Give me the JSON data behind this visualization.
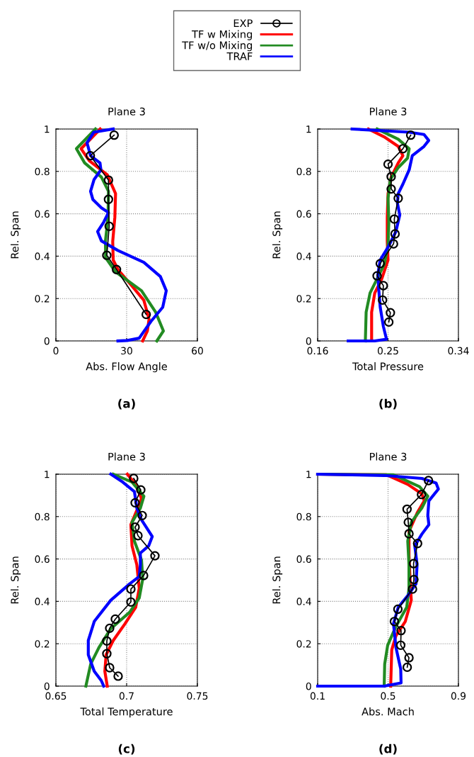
{
  "chart_data": [
    {
      "type": "line",
      "title": "Plane 3",
      "xlabel": "Abs. Flow Angle",
      "ylabel": "Rel. Span",
      "annotations": [
        "(a)"
      ],
      "xlim": [
        0,
        60
      ],
      "xticks": [
        0,
        30,
        60
      ],
      "ylim": [
        0,
        1
      ],
      "yticks": [
        0,
        0.2,
        0.4,
        0.6,
        0.8,
        1
      ],
      "grid": true,
      "legend": "top",
      "series": [
        {
          "name": "EXP",
          "color": "#000000",
          "marker": "circle",
          "x": [
            24.7,
            14.6,
            22.3,
            22.3,
            22.6,
            21.6,
            25.7,
            38.3
          ],
          "values": [
            0.971,
            0.874,
            0.759,
            0.668,
            0.541,
            0.404,
            0.337,
            0.125
          ]
        },
        {
          "name": "TF w Mixing",
          "color": "#ff0000",
          "x": [
            18.8,
            10.7,
            14.2,
            21.8,
            25.3,
            25.0,
            24.1,
            24.3,
            26.3,
            32.3,
            37.3,
            39.5,
            38.8,
            36.8
          ],
          "values": [
            1.0,
            0.907,
            0.85,
            0.784,
            0.695,
            0.583,
            0.47,
            0.382,
            0.337,
            0.259,
            0.192,
            0.103,
            0.047,
            0
          ]
        },
        {
          "name": "TF w/o Mixing",
          "color": "#228b22",
          "x": [
            16.8,
            8.7,
            12.2,
            19.3,
            22.3,
            22.1,
            21.0,
            21.1,
            25.3,
            36.3,
            42.3,
            45.6,
            42.8
          ],
          "values": [
            1.0,
            0.907,
            0.84,
            0.773,
            0.706,
            0.583,
            0.47,
            0.393,
            0.326,
            0.237,
            0.136,
            0.047,
            0
          ]
        },
        {
          "name": "TRAF",
          "color": "#0000ff",
          "x": [
            24.3,
            16.1,
            13.2,
            14.7,
            18.7,
            19.1,
            16.2,
            14.7,
            15.7,
            19.3,
            22.3,
            20.3,
            17.7,
            19.3,
            26.3,
            37.3,
            44.3,
            46.8,
            45.3,
            40.3,
            35.3,
            30.3,
            26.3
          ],
          "values": [
            1.0,
            0.985,
            0.935,
            0.874,
            0.84,
            0.807,
            0.762,
            0.706,
            0.667,
            0.628,
            0.606,
            0.561,
            0.516,
            0.472,
            0.427,
            0.371,
            0.304,
            0.237,
            0.159,
            0.092,
            0.013,
            0.002,
            0
          ]
        }
      ]
    },
    {
      "type": "line",
      "title": "Plane 3",
      "xlabel": "Total Pressure",
      "ylabel": "Rel. Span",
      "annotations": [
        "(b)"
      ],
      "xlim": [
        0.16,
        0.34
      ],
      "xticks": [
        0.16,
        0.25,
        0.34
      ],
      "ylim": [
        0,
        1
      ],
      "yticks": [
        0,
        0.2,
        0.4,
        0.6,
        0.8,
        1
      ],
      "grid": true,
      "series": [
        {
          "color": "#000000",
          "marker": "circle",
          "x": [
            0.279,
            0.269,
            0.25,
            0.254,
            0.254,
            0.263,
            0.258,
            0.259,
            0.257,
            0.24,
            0.236,
            0.244,
            0.243,
            0.253,
            0.251
          ],
          "values": [
            0.971,
            0.907,
            0.834,
            0.775,
            0.717,
            0.673,
            0.575,
            0.505,
            0.458,
            0.365,
            0.307,
            0.261,
            0.193,
            0.133,
            0.089
          ]
        },
        {
          "color": "#ff0000",
          "x": [
            0.225,
            0.245,
            0.263,
            0.269,
            0.263,
            0.254,
            0.25,
            0.249,
            0.249,
            0.25,
            0.242,
            0.233,
            0.229,
            0.229
          ],
          "values": [
            1.0,
            0.963,
            0.918,
            0.874,
            0.84,
            0.773,
            0.695,
            0.583,
            0.47,
            0.382,
            0.293,
            0.226,
            0.136,
            0
          ]
        },
        {
          "color": "#228b22",
          "x": [
            0.236,
            0.263,
            0.277,
            0.275,
            0.263,
            0.253,
            0.25,
            0.251,
            0.25,
            0.245,
            0.236,
            0.227,
            0.222,
            0.221
          ],
          "values": [
            1.0,
            0.952,
            0.907,
            0.863,
            0.818,
            0.762,
            0.673,
            0.561,
            0.449,
            0.36,
            0.293,
            0.226,
            0.136,
            0
          ]
        },
        {
          "color": "#0000ff",
          "x": [
            0.204,
            0.277,
            0.296,
            0.302,
            0.296,
            0.281,
            0.277,
            0.269,
            0.263,
            0.262,
            0.265,
            0.26,
            0.251,
            0.24,
            0.237,
            0.238,
            0.24,
            0.244,
            0.248,
            0.233,
            0.199
          ],
          "values": [
            1.0,
            0.985,
            0.974,
            0.946,
            0.918,
            0.874,
            0.807,
            0.74,
            0.695,
            0.65,
            0.594,
            0.516,
            0.449,
            0.382,
            0.315,
            0.248,
            0.159,
            0.069,
            0.008,
            0,
            0
          ]
        }
      ]
    },
    {
      "type": "line",
      "title": "Plane 3",
      "xlabel": "Total Temperature",
      "ylabel": "Rel. Span",
      "annotations": [
        "(c)"
      ],
      "xlim": [
        0.65,
        0.75
      ],
      "xticks": [
        0.65,
        0.7,
        0.75
      ],
      "ylim": [
        0,
        1
      ],
      "yticks": [
        0,
        0.2,
        0.4,
        0.6,
        0.8,
        1
      ],
      "grid": true,
      "series": [
        {
          "color": "#000000",
          "marker": "circle",
          "x": [
            0.705,
            0.71,
            0.706,
            0.711,
            0.706,
            0.708,
            0.72,
            0.712,
            0.703,
            0.703,
            0.692,
            0.688,
            0.686,
            0.686,
            0.688,
            0.694
          ],
          "values": [
            0.98,
            0.926,
            0.865,
            0.805,
            0.75,
            0.71,
            0.615,
            0.522,
            0.458,
            0.397,
            0.316,
            0.273,
            0.213,
            0.153,
            0.087,
            0.047
          ]
        },
        {
          "color": "#ff0000",
          "x": [
            0.7005,
            0.7064,
            0.7105,
            0.7072,
            0.703,
            0.7038,
            0.7072,
            0.7089,
            0.7064,
            0.6988,
            0.6905,
            0.6855,
            0.6846,
            0.6863
          ],
          "values": [
            1.0,
            0.952,
            0.885,
            0.829,
            0.762,
            0.662,
            0.573,
            0.461,
            0.372,
            0.294,
            0.215,
            0.148,
            0.07,
            0
          ]
        },
        {
          "color": "#228b22",
          "x": [
            0.6905,
            0.7038,
            0.7122,
            0.7097,
            0.7038,
            0.7055,
            0.7105,
            0.7114,
            0.7089,
            0.7022,
            0.6888,
            0.6804,
            0.6746,
            0.6712
          ],
          "values": [
            1.0,
            0.963,
            0.896,
            0.84,
            0.773,
            0.684,
            0.595,
            0.506,
            0.416,
            0.349,
            0.271,
            0.182,
            0.104,
            0
          ]
        },
        {
          "color": "#0000ff",
          "x": [
            0.6888,
            0.6972,
            0.7055,
            0.7072,
            0.7105,
            0.7181,
            0.7156,
            0.7097,
            0.7097,
            0.7089,
            0.7022,
            0.6888,
            0.6771,
            0.6729,
            0.6729,
            0.6771,
            0.6821,
            0.6838
          ],
          "values": [
            1.0,
            0.963,
            0.918,
            0.84,
            0.785,
            0.706,
            0.662,
            0.628,
            0.573,
            0.517,
            0.483,
            0.405,
            0.305,
            0.215,
            0.148,
            0.07,
            0.026,
            0
          ]
        }
      ]
    },
    {
      "type": "line",
      "title": "Plane 3",
      "xlabel": "Abs. Mach",
      "ylabel": "Rel. Span",
      "annotations": [
        "(d)"
      ],
      "xlim": [
        0.1,
        0.9
      ],
      "xticks": [
        0.1,
        0.5,
        0.9
      ],
      "ylim": [
        0,
        1
      ],
      "yticks": [
        0,
        0.2,
        0.4,
        0.6,
        0.8,
        1
      ],
      "grid": true,
      "series": [
        {
          "color": "#000000",
          "marker": "circle",
          "x": [
            0.73,
            0.69,
            0.608,
            0.615,
            0.619,
            0.668,
            0.645,
            0.647,
            0.639,
            0.556,
            0.536,
            0.574,
            0.572,
            0.619,
            0.609
          ],
          "values": [
            0.97,
            0.904,
            0.835,
            0.773,
            0.719,
            0.673,
            0.578,
            0.503,
            0.458,
            0.363,
            0.305,
            0.262,
            0.193,
            0.134,
            0.089
          ]
        },
        {
          "color": "#ff0000",
          "x": [
            0.1,
            0.491,
            0.612,
            0.692,
            0.706,
            0.666,
            0.619,
            0.619,
            0.625,
            0.632,
            0.598,
            0.545,
            0.521,
            0.515
          ],
          "values": [
            1.0,
            0.997,
            0.952,
            0.907,
            0.874,
            0.818,
            0.729,
            0.617,
            0.506,
            0.405,
            0.305,
            0.238,
            0.171,
            0
          ]
        },
        {
          "color": "#228b22",
          "x": [
            0.1,
            0.531,
            0.679,
            0.726,
            0.692,
            0.632,
            0.612,
            0.619,
            0.619,
            0.606,
            0.545,
            0.498,
            0.481,
            0.478
          ],
          "values": [
            1.0,
            0.997,
            0.941,
            0.896,
            0.84,
            0.773,
            0.684,
            0.573,
            0.461,
            0.372,
            0.282,
            0.193,
            0.104,
            0
          ]
        },
        {
          "color": "#0000ff",
          "x": [
            0.1,
            0.478,
            0.692,
            0.773,
            0.786,
            0.732,
            0.726,
            0.732,
            0.692,
            0.652,
            0.665,
            0.659,
            0.612,
            0.558,
            0.531,
            0.545,
            0.572,
            0.574,
            0.478,
            0.1
          ],
          "values": [
            1.0,
            0.994,
            0.98,
            0.958,
            0.93,
            0.874,
            0.807,
            0.762,
            0.717,
            0.662,
            0.573,
            0.483,
            0.427,
            0.372,
            0.294,
            0.182,
            0.081,
            0.015,
            0,
            0
          ]
        }
      ]
    }
  ]
}
